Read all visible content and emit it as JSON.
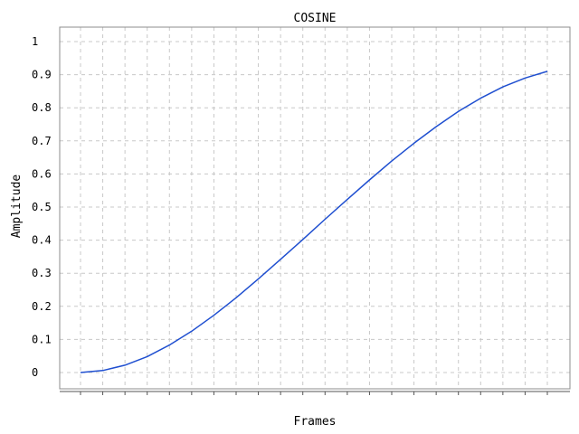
{
  "chart_data": {
    "type": "line",
    "title": "COSINE",
    "xlabel": "Frames",
    "ylabel": "Amplitude",
    "ylim": [
      0,
      1
    ],
    "yticks": [
      "0",
      "0.1",
      "0.2",
      "0.3",
      "0.4",
      "0.5",
      "0.6",
      "0.7",
      "0.8",
      "0.9",
      "1"
    ],
    "xticks_labeled": false,
    "grid": true,
    "legend": "none",
    "series": [
      {
        "color": "#1f4fd0",
        "x": [
          0,
          1,
          2,
          3,
          4,
          5,
          6,
          7,
          8,
          9,
          10,
          11,
          12,
          13,
          14,
          15,
          16,
          17,
          18,
          19,
          20,
          21
        ],
        "values": [
          0,
          0.006,
          0.022,
          0.048,
          0.083,
          0.125,
          0.173,
          0.226,
          0.283,
          0.342,
          0.402,
          0.463,
          0.523,
          0.582,
          0.639,
          0.693,
          0.743,
          0.789,
          0.829,
          0.863,
          0.89,
          0.91
        ]
      }
    ]
  }
}
